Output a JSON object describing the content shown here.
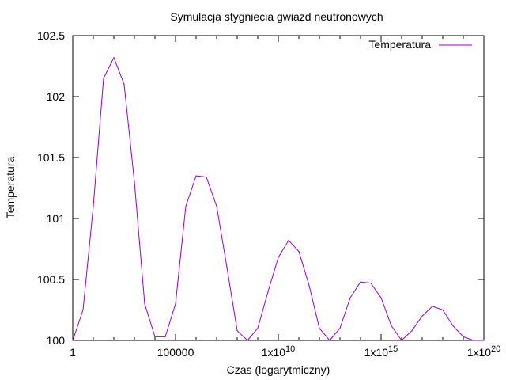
{
  "chart_data": {
    "type": "line",
    "title": "Symulacja stygniecia gwiazd neutronowych",
    "xlabel": "Czas (logarytmiczny)",
    "ylabel": "Temperatura",
    "x_scale": "log",
    "xlim": [
      1,
      1e+20
    ],
    "ylim": [
      100,
      102.5
    ],
    "grid": false,
    "legend_position": "top-right",
    "x_ticks": [
      {
        "value": 1,
        "base": "1",
        "exp": ""
      },
      {
        "value": 100000,
        "base": "100000",
        "exp": ""
      },
      {
        "value": 10000000000.0,
        "base": "1x10",
        "exp": "10"
      },
      {
        "value": 1000000000000000.0,
        "base": "1x10",
        "exp": "15"
      },
      {
        "value": 1e+20,
        "base": "1x10",
        "exp": "20"
      }
    ],
    "y_ticks": [
      {
        "value": 100,
        "label": "100"
      },
      {
        "value": 100.5,
        "label": "100.5"
      },
      {
        "value": 101,
        "label": "101"
      },
      {
        "value": 101.5,
        "label": "101.5"
      },
      {
        "value": 102,
        "label": "102"
      },
      {
        "value": 102.5,
        "label": "102.5"
      }
    ],
    "series": [
      {
        "name": "Temperatura",
        "color": "#9400d3",
        "points": [
          [
            1,
            100
          ],
          [
            3.16,
            100.25
          ],
          [
            10,
            101.1
          ],
          [
            31.6,
            102.15
          ],
          [
            100,
            102.32
          ],
          [
            316,
            102.1
          ],
          [
            1000,
            101.3
          ],
          [
            3160,
            100.3
          ],
          [
            10000,
            100.03
          ],
          [
            31600,
            100.03
          ],
          [
            100000,
            100.3
          ],
          [
            316000,
            101.1
          ],
          [
            1000000.0,
            101.35
          ],
          [
            3160000.0,
            101.34
          ],
          [
            10000000.0,
            101.1
          ],
          [
            31600000.0,
            100.6
          ],
          [
            100000000.0,
            100.08
          ],
          [
            316000000.0,
            100
          ],
          [
            1000000000.0,
            100.1
          ],
          [
            3160000000.0,
            100.4
          ],
          [
            10000000000.0,
            100.68
          ],
          [
            31600000000.0,
            100.82
          ],
          [
            100000000000.0,
            100.73
          ],
          [
            316000000000.0,
            100.45
          ],
          [
            1000000000000.0,
            100.1
          ],
          [
            3160000000000.0,
            100
          ],
          [
            10000000000000.0,
            100.1
          ],
          [
            31600000000000.0,
            100.35
          ],
          [
            100000000000000.0,
            100.48
          ],
          [
            316000000000000.0,
            100.47
          ],
          [
            1000000000000000.0,
            100.35
          ],
          [
            3160000000000000.0,
            100.12
          ],
          [
            1e+16,
            100
          ],
          [
            3.16e+16,
            100.08
          ],
          [
            1e+17,
            100.2
          ],
          [
            3.16e+17,
            100.28
          ],
          [
            1e+18,
            100.25
          ],
          [
            3.16e+18,
            100.12
          ],
          [
            1e+19,
            100.03
          ],
          [
            3.16e+19,
            100
          ],
          [
            1e+20,
            100
          ]
        ]
      }
    ]
  }
}
